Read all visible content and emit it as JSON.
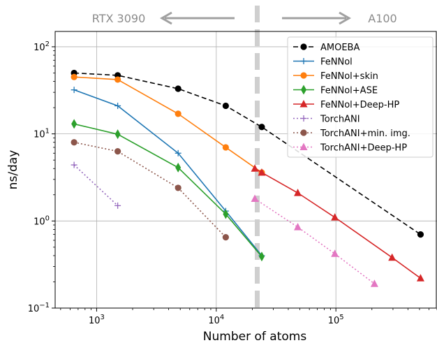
{
  "chart_data": {
    "type": "line",
    "xscale": "log",
    "yscale": "log",
    "xlabel": "Number of atoms",
    "ylabel": "ns/day",
    "xlim": [
      450,
      700000
    ],
    "ylim": [
      0.1,
      150
    ],
    "grid": true,
    "legend_position": "top-right",
    "xticks": [
      {
        "value": 1000,
        "base": "10",
        "exp": "3"
      },
      {
        "value": 10000,
        "base": "10",
        "exp": "4"
      },
      {
        "value": 100000,
        "base": "10",
        "exp": "5"
      }
    ],
    "yticks": [
      {
        "value": 0.1,
        "base": "10",
        "exp": "−1"
      },
      {
        "value": 1,
        "base": "10",
        "exp": "0"
      },
      {
        "value": 10,
        "base": "10",
        "exp": "1"
      },
      {
        "value": 100,
        "base": "10",
        "exp": "2"
      }
    ],
    "annotations": {
      "left_label": "RTX 3090",
      "right_label": "A100",
      "divider_x": 22000
    },
    "series": [
      {
        "name": "AMOEBA",
        "color": "#000000",
        "dash": "dashed",
        "marker": "circle",
        "x": [
          648,
          1500,
          4800,
          12000,
          24000,
          510000
        ],
        "y": [
          50,
          47,
          33,
          21,
          12,
          0.7
        ]
      },
      {
        "name": "FeNNol",
        "color": "#1f77b4",
        "dash": "solid",
        "marker": "plus",
        "x": [
          648,
          1500,
          4800,
          12000,
          24000
        ],
        "y": [
          32,
          21,
          6,
          1.3,
          0.4
        ]
      },
      {
        "name": "FeNNol+skin",
        "color": "#ff7f0e",
        "dash": "solid",
        "marker": "circle",
        "x": [
          648,
          1500,
          4800,
          12000,
          24000
        ],
        "y": [
          45,
          42,
          17,
          7,
          3.6
        ]
      },
      {
        "name": "FeNNol+ASE",
        "color": "#2ca02c",
        "dash": "solid",
        "marker": "diamond",
        "x": [
          648,
          1500,
          4800,
          12000,
          24000
        ],
        "y": [
          13,
          9.9,
          4.1,
          1.2,
          0.39
        ]
      },
      {
        "name": "FeNNol+Deep-HP",
        "color": "#d62728",
        "dash": "solid",
        "marker": "triangle",
        "x": [
          21000,
          24000,
          48000,
          98000,
          295000,
          510000
        ],
        "y": [
          4,
          3.6,
          2.1,
          1.1,
          0.38,
          0.22
        ]
      },
      {
        "name": "TorchANI",
        "color": "#9467bd",
        "dash": "dotted",
        "marker": "plus",
        "x": [
          648,
          1500
        ],
        "y": [
          4.4,
          1.5
        ]
      },
      {
        "name": "TorchANI+min. img.",
        "color": "#8c564b",
        "dash": "dotted",
        "marker": "circle",
        "x": [
          648,
          1500,
          4800,
          12000
        ],
        "y": [
          8,
          6.3,
          2.4,
          0.65
        ]
      },
      {
        "name": "TorchANI+Deep-HP",
        "color": "#e377c2",
        "dash": "dotted",
        "marker": "triangle",
        "x": [
          21000,
          48000,
          98000,
          210000
        ],
        "y": [
          1.8,
          0.85,
          0.42,
          0.19
        ]
      }
    ]
  }
}
